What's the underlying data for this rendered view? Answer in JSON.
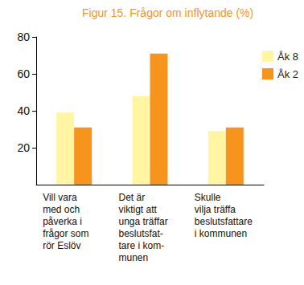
{
  "chart_data": {
    "type": "bar",
    "title": "Figur 15. Frågor om inflytande (%)",
    "categories": [
      "Vill vara\nmed och\npåverka i\nfrågor som\nrör Eslöv",
      "Det är\nviktigt att\nunga träffar\nbeslutsfat-\ntare i kom-\nmunen",
      "Skulle\nvilja träffa\nbeslutsfattare\ni kommunen"
    ],
    "series": [
      {
        "name": "Åk 8",
        "color": "#FFF5A3",
        "values": [
          39,
          48,
          29
        ]
      },
      {
        "name": "Åk 2",
        "color": "#F7941D",
        "values": [
          31,
          71,
          31
        ]
      }
    ],
    "ylim": [
      0,
      80
    ],
    "yticks": [
      20,
      40,
      60,
      80
    ],
    "grid": false,
    "legend": "upper right"
  }
}
